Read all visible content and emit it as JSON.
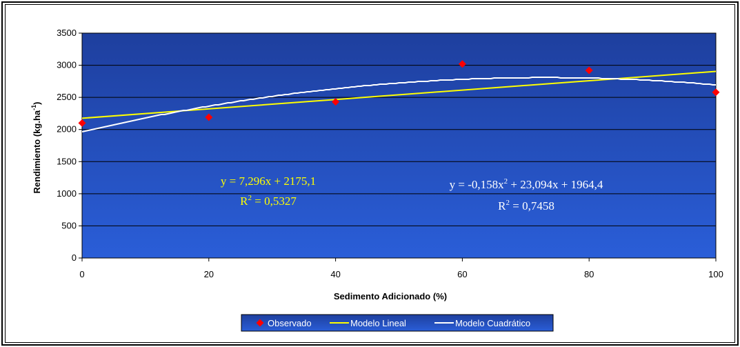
{
  "chart_data": {
    "type": "scatter",
    "title": "",
    "xlabel": "Sedimento Adicionado (%)",
    "ylabel": "Rendimiento (kg.ha",
    "ylabel_sup": "-1",
    "ylabel_end": ")",
    "xlim": [
      0,
      100
    ],
    "ylim": [
      0,
      3500
    ],
    "x_ticks": [
      0,
      20,
      40,
      60,
      80,
      100
    ],
    "y_ticks": [
      0,
      500,
      1000,
      1500,
      2000,
      2500,
      3000,
      3500
    ],
    "grid": true,
    "series": [
      {
        "name": "Observado",
        "type": "scatter",
        "color": "#ff0000",
        "x": [
          0,
          20,
          40,
          60,
          80,
          100
        ],
        "y": [
          2100,
          2190,
          2430,
          3020,
          2920,
          2580
        ]
      },
      {
        "name": "Modelo Lineal",
        "type": "line",
        "color": "#ffff00",
        "slope": 7.296,
        "intercept": 2175.1
      },
      {
        "name": "Modelo Cuadrático",
        "type": "line",
        "color": "#ffffff",
        "a": -0.158,
        "b": 23.094,
        "c": 1964.4
      }
    ],
    "annotations": {
      "linear_eq": "y = 7,296x + 2175,1",
      "linear_r2_prefix": "R",
      "linear_r2_sup": "2",
      "linear_r2_value": " = 0,5327",
      "quad_eq_part1": "y = -0,158x",
      "quad_eq_sup": "2",
      "quad_eq_part2": " + 23,094x + 1964,4",
      "quad_r2_prefix": "R",
      "quad_r2_sup": "2",
      "quad_r2_value": " = 0,7458"
    },
    "legend_position": "bottom-center",
    "plot_colors": {
      "bg_top": "#1e3f9e",
      "bg_bottom": "#2a5ed8",
      "grid": "#000000"
    }
  }
}
